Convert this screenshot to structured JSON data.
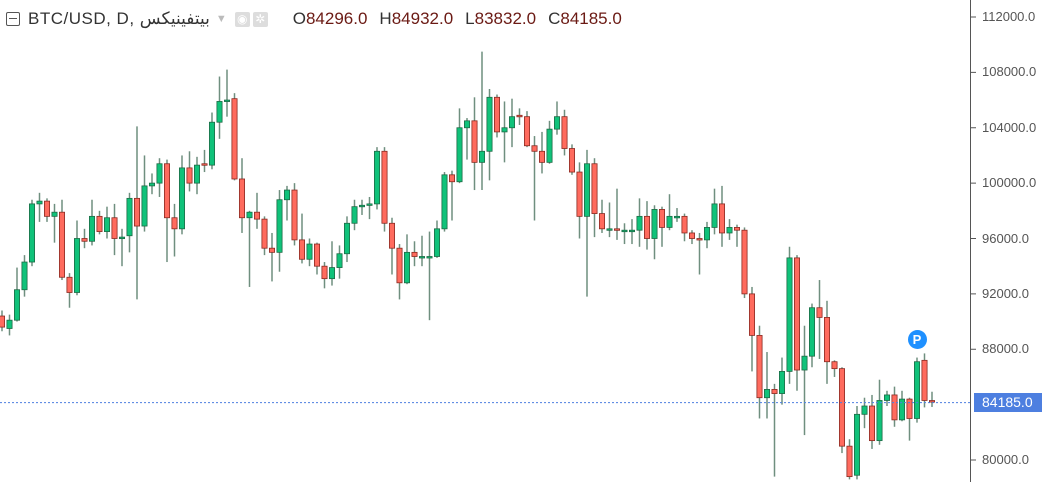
{
  "header": {
    "symbol": "BTC/USD, D, بيتفينيكس",
    "icons": [
      "collapse-icon",
      "caret-down-icon",
      "eye-icon",
      "gear-icon"
    ],
    "ohlc": [
      {
        "key": "O",
        "value": "84296.0"
      },
      {
        "key": "H",
        "value": "84932.0"
      },
      {
        "key": "L",
        "value": "83832.0"
      },
      {
        "key": "C",
        "value": "84185.0"
      }
    ]
  },
  "price_axis": {
    "ticks": [
      "112000.0",
      "108000.0",
      "104000.0",
      "100000.0",
      "96000.0",
      "92000.0",
      "88000.0",
      "80000.0"
    ],
    "last_price_label": "84185.0"
  },
  "marker": {
    "label": "P",
    "color": "#1e90ff",
    "candle_index": 122
  },
  "colors": {
    "up": "#10c27a",
    "up_border": "#1d6b45",
    "down": "#ff6b5e",
    "down_border": "#8a2a22",
    "wick": "#6f8f7f",
    "last_price": "#4d7fe0"
  },
  "chart_data": {
    "type": "candlestick",
    "title": "BTC/USD, D, بيتفينيكس",
    "ylim": [
      79000,
      112600
    ],
    "y_ticks": [
      112000,
      108000,
      104000,
      100000,
      96000,
      92000,
      88000,
      80000
    ],
    "last_price": 84185,
    "grid": false,
    "ohlc": [
      [
        90400,
        90800,
        89300,
        89600
      ],
      [
        89500,
        90500,
        89000,
        90100
      ],
      [
        90100,
        93900,
        90000,
        92300
      ],
      [
        92300,
        94800,
        91800,
        94300
      ],
      [
        94300,
        98800,
        94000,
        98500
      ],
      [
        98500,
        99300,
        97200,
        98700
      ],
      [
        98700,
        98900,
        97200,
        97600
      ],
      [
        97600,
        98500,
        95700,
        97900
      ],
      [
        97900,
        98800,
        93000,
        93200
      ],
      [
        93200,
        93500,
        91000,
        92100
      ],
      [
        92100,
        97300,
        91900,
        96000
      ],
      [
        96000,
        96700,
        95300,
        95800
      ],
      [
        95800,
        98800,
        95500,
        97600
      ],
      [
        97600,
        98000,
        96300,
        96500
      ],
      [
        96500,
        98300,
        96000,
        97500
      ],
      [
        97500,
        98500,
        94800,
        96000
      ],
      [
        96000,
        96700,
        94000,
        96100
      ],
      [
        96200,
        99300,
        95000,
        98900
      ],
      [
        98900,
        104100,
        91600,
        96900
      ],
      [
        96900,
        102000,
        96500,
        99800
      ],
      [
        99800,
        100700,
        99200,
        100000
      ],
      [
        100000,
        101800,
        99000,
        101400
      ],
      [
        101400,
        101700,
        94300,
        97500
      ],
      [
        97500,
        98500,
        94700,
        96700
      ],
      [
        96700,
        102000,
        96300,
        101100
      ],
      [
        101100,
        102300,
        99400,
        100000
      ],
      [
        100000,
        101900,
        99200,
        101300
      ],
      [
        101400,
        102400,
        100800,
        101300
      ],
      [
        101300,
        105100,
        101000,
        104400
      ],
      [
        104400,
        107700,
        103200,
        105900
      ],
      [
        105900,
        108200,
        104800,
        106000
      ],
      [
        106100,
        106500,
        100200,
        100300
      ],
      [
        100300,
        101800,
        96400,
        97500
      ],
      [
        97500,
        98000,
        92500,
        97900
      ],
      [
        97900,
        99300,
        96700,
        97400
      ],
      [
        97400,
        97600,
        94800,
        95300
      ],
      [
        95300,
        96400,
        92900,
        95000
      ],
      [
        95000,
        99500,
        93600,
        98800
      ],
      [
        98800,
        99800,
        97300,
        99500
      ],
      [
        99500,
        100000,
        95500,
        95900
      ],
      [
        95900,
        97800,
        94200,
        94500
      ],
      [
        94500,
        96000,
        94000,
        95600
      ],
      [
        95600,
        95700,
        93400,
        94000
      ],
      [
        94000,
        94300,
        92400,
        93100
      ],
      [
        93100,
        95800,
        92600,
        93900
      ],
      [
        93900,
        95500,
        93100,
        94900
      ],
      [
        94900,
        97600,
        94300,
        97100
      ],
      [
        97100,
        98800,
        96600,
        98300
      ],
      [
        98300,
        98800,
        97700,
        98400
      ],
      [
        98400,
        99000,
        97400,
        98500
      ],
      [
        98500,
        102600,
        98100,
        102300
      ],
      [
        102300,
        102600,
        96500,
        97100
      ],
      [
        97100,
        97500,
        93400,
        95300
      ],
      [
        95300,
        95600,
        91600,
        92800
      ],
      [
        92800,
        96300,
        92700,
        95000
      ],
      [
        95000,
        95800,
        94000,
        94700
      ],
      [
        94700,
        96200,
        94000,
        94700
      ],
      [
        94700,
        96500,
        90100,
        94700
      ],
      [
        94700,
        97300,
        94600,
        96700
      ],
      [
        96700,
        100800,
        96500,
        100600
      ],
      [
        100600,
        100900,
        97300,
        100100
      ],
      [
        100100,
        105400,
        100000,
        104000
      ],
      [
        104000,
        104700,
        101700,
        104500
      ],
      [
        104500,
        106200,
        99500,
        101500
      ],
      [
        101500,
        109500,
        99500,
        102300
      ],
      [
        102300,
        106800,
        100200,
        106200
      ],
      [
        106200,
        106400,
        103300,
        103700
      ],
      [
        103700,
        105900,
        101500,
        104000
      ],
      [
        104000,
        106100,
        102600,
        104800
      ],
      [
        104900,
        105400,
        104200,
        104800
      ],
      [
        104800,
        105200,
        102600,
        102700
      ],
      [
        102700,
        103400,
        97300,
        102300
      ],
      [
        102300,
        103700,
        100700,
        101500
      ],
      [
        101500,
        104500,
        101400,
        103900
      ],
      [
        103900,
        105900,
        103500,
        104800
      ],
      [
        104800,
        105300,
        102000,
        102500
      ],
      [
        102500,
        102800,
        100600,
        100800
      ],
      [
        100800,
        101500,
        96000,
        97600
      ],
      [
        97600,
        102400,
        91800,
        101400
      ],
      [
        101400,
        101800,
        96100,
        97800
      ],
      [
        97800,
        98800,
        96400,
        96700
      ],
      [
        96700,
        98600,
        96100,
        96700
      ],
      [
        96700,
        99600,
        95900,
        96600
      ],
      [
        96600,
        97100,
        95600,
        96600
      ],
      [
        96600,
        97400,
        95600,
        96600
      ],
      [
        96600,
        98900,
        95400,
        97600
      ],
      [
        97600,
        98700,
        95200,
        96000
      ],
      [
        96000,
        98400,
        94500,
        98100
      ],
      [
        98100,
        98300,
        95400,
        96800
      ],
      [
        96800,
        99200,
        96600,
        97600
      ],
      [
        97500,
        98200,
        97200,
        97600
      ],
      [
        97600,
        97800,
        95800,
        96400
      ],
      [
        96400,
        96600,
        95600,
        96000
      ],
      [
        96000,
        96400,
        93400,
        95900
      ],
      [
        95900,
        97200,
        95300,
        96800
      ],
      [
        96800,
        99600,
        96300,
        98500
      ],
      [
        98500,
        99800,
        95400,
        96400
      ],
      [
        96400,
        97400,
        95900,
        96800
      ],
      [
        96800,
        97000,
        95400,
        96600
      ],
      [
        96600,
        96800,
        91700,
        92000
      ],
      [
        92000,
        92500,
        86400,
        89000
      ],
      [
        89000,
        89700,
        83000,
        84500
      ],
      [
        84500,
        87800,
        83000,
        85100
      ],
      [
        85100,
        85500,
        78800,
        84800
      ],
      [
        84800,
        87400,
        84000,
        86400
      ],
      [
        86400,
        95400,
        85500,
        94600
      ],
      [
        94600,
        94800,
        85000,
        86500
      ],
      [
        86500,
        89700,
        81800,
        87500
      ],
      [
        87500,
        91300,
        86700,
        91000
      ],
      [
        91000,
        93000,
        87300,
        90300
      ],
      [
        90300,
        91500,
        85500,
        87100
      ],
      [
        87100,
        87200,
        86000,
        86600
      ],
      [
        86600,
        86700,
        80500,
        81000
      ],
      [
        81000,
        81500,
        78600,
        78800
      ],
      [
        78900,
        83900,
        78600,
        83300
      ],
      [
        83300,
        84500,
        82300,
        83900
      ],
      [
        83900,
        84700,
        80800,
        81400
      ],
      [
        81400,
        85800,
        81100,
        84300
      ],
      [
        84300,
        85000,
        83900,
        84700
      ],
      [
        84700,
        85300,
        82400,
        82900
      ],
      [
        82900,
        85000,
        82800,
        84400
      ],
      [
        84400,
        84500,
        81400,
        83000
      ],
      [
        83000,
        87400,
        82700,
        87100
      ],
      [
        87200,
        87700,
        83800,
        84300
      ],
      [
        84296,
        84932,
        83832,
        84185
      ]
    ]
  }
}
